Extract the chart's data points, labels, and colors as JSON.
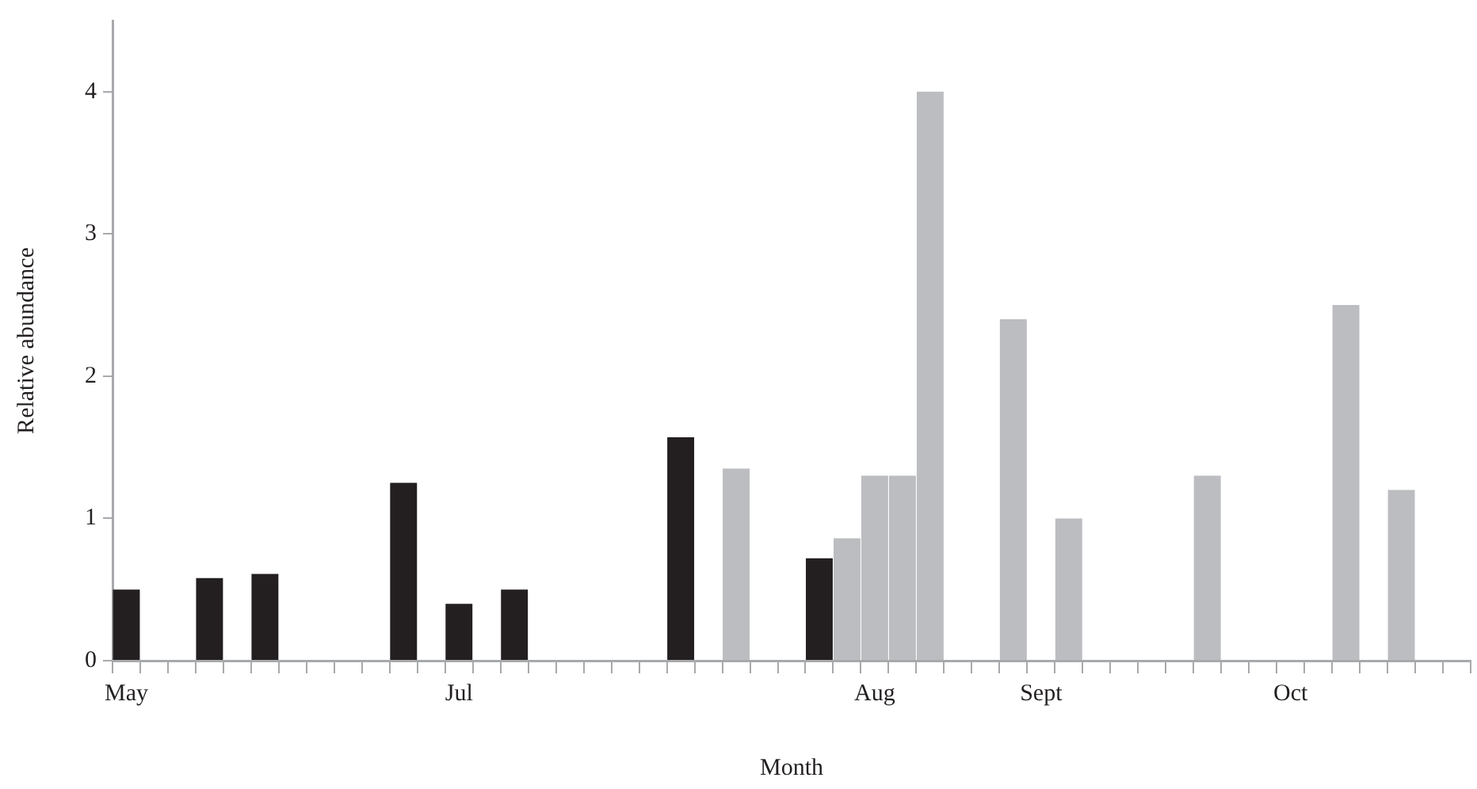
{
  "chart_data": {
    "type": "bar",
    "xlabel": "Month",
    "ylabel": "Relative abundance",
    "categories": [
      "May",
      null,
      null,
      null,
      null,
      null,
      null,
      null,
      null,
      null,
      null,
      null,
      "Jul",
      null,
      null,
      null,
      null,
      null,
      null,
      null,
      null,
      null,
      null,
      null,
      null,
      null,
      null,
      "Aug",
      null,
      null,
      null,
      null,
      null,
      "Sept",
      null,
      null,
      null,
      null,
      null,
      null,
      null,
      null,
      "Oct",
      null,
      null,
      null,
      null,
      null,
      null
    ],
    "series": [
      {
        "color": "#231f20",
        "values": [
          0.5,
          null,
          null,
          0.58,
          null,
          0.61,
          null,
          null,
          null,
          null,
          1.25,
          null,
          0.4,
          null,
          0.5,
          null,
          null,
          null,
          null,
          null,
          1.57,
          null,
          null,
          null,
          null,
          0.72,
          null,
          null,
          null,
          null,
          null,
          null,
          null,
          null,
          null,
          null,
          null,
          null,
          null,
          null,
          null,
          null,
          null,
          null,
          null,
          null,
          null,
          null,
          null
        ]
      },
      {
        "color": "#bcbdc0",
        "values": [
          null,
          null,
          null,
          null,
          null,
          null,
          null,
          null,
          null,
          null,
          null,
          null,
          null,
          null,
          null,
          null,
          null,
          null,
          null,
          null,
          null,
          null,
          1.35,
          null,
          null,
          null,
          0.86,
          1.3,
          1.3,
          4.0,
          null,
          null,
          2.4,
          null,
          1.0,
          null,
          null,
          null,
          null,
          1.3,
          null,
          null,
          null,
          null,
          2.5,
          null,
          1.2,
          null,
          null
        ]
      }
    ],
    "ylim": [
      0,
      4.5
    ],
    "yticks": [
      0,
      1,
      2,
      3,
      4
    ],
    "grid": false,
    "legend": false
  }
}
